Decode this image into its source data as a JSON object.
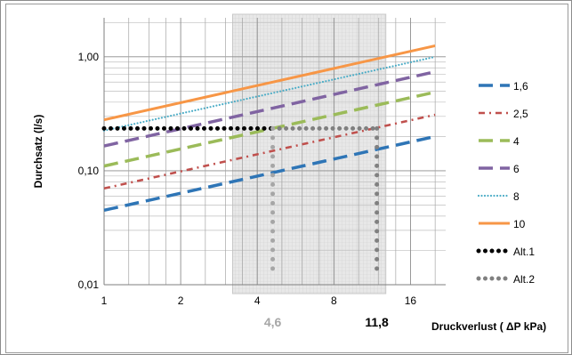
{
  "chart_data": {
    "type": "line",
    "title": "",
    "xlabel": "Druckverlust ( ΔP kPa)",
    "ylabel": "Durchsatz (l/s)",
    "x_scale": "log2",
    "y_scale": "log10",
    "xlim": [
      1,
      22
    ],
    "ylim": [
      0.01,
      2.2
    ],
    "x_ticks": [
      1,
      2,
      4,
      8,
      16
    ],
    "y_ticks": [
      {
        "value": 0.01,
        "label": "0,01"
      },
      {
        "value": 0.1,
        "label": "0,10"
      },
      {
        "value": 1,
        "label": "1,00"
      }
    ],
    "shaded_range": [
      3.2,
      12.8
    ],
    "highlight_values": [
      {
        "value": 4.6,
        "label": "4,6",
        "color": "#a6a6a6"
      },
      {
        "value": 11.8,
        "label": "11,8",
        "color": "#000000"
      }
    ],
    "grid": true,
    "legend_position": "right",
    "series": [
      {
        "name": "1,6",
        "color": "#2e75b6",
        "dash": "long-dash",
        "x": [
          1,
          20
        ],
        "y": [
          0.045,
          0.2
        ]
      },
      {
        "name": "2,5",
        "color": "#c0504d",
        "dash": "dash-dot",
        "x": [
          1,
          20
        ],
        "y": [
          0.07,
          0.31
        ]
      },
      {
        "name": "4",
        "color": "#9bbb59",
        "dash": "long-dash",
        "x": [
          1,
          20
        ],
        "y": [
          0.11,
          0.49
        ]
      },
      {
        "name": "6",
        "color": "#8064a2",
        "dash": "long-dash",
        "x": [
          1,
          20
        ],
        "y": [
          0.165,
          0.74
        ]
      },
      {
        "name": "8",
        "color": "#4bacc6",
        "dash": "dotted",
        "x": [
          1,
          20
        ],
        "y": [
          0.225,
          1.0
        ]
      },
      {
        "name": "10",
        "color": "#f79646",
        "dash": "solid",
        "x": [
          1,
          20
        ],
        "y": [
          0.28,
          1.25
        ]
      },
      {
        "name": "Alt.1",
        "color": "#000000",
        "dash": "round-dot",
        "x": [
          1,
          4.6
        ],
        "y": [
          0.235,
          0.235
        ]
      },
      {
        "name": "Alt.2",
        "color": "#808080",
        "dash": "round-dot",
        "x": [
          4.6,
          11.8
        ],
        "y": [
          0.235,
          0.235
        ]
      }
    ],
    "alt_verticals": [
      {
        "x": 4.6,
        "y_from": 0.012,
        "y_to": 0.235,
        "color": "#a6a6a6"
      },
      {
        "x": 11.8,
        "y_from": 0.012,
        "y_to": 0.235,
        "color": "#808080"
      }
    ]
  }
}
